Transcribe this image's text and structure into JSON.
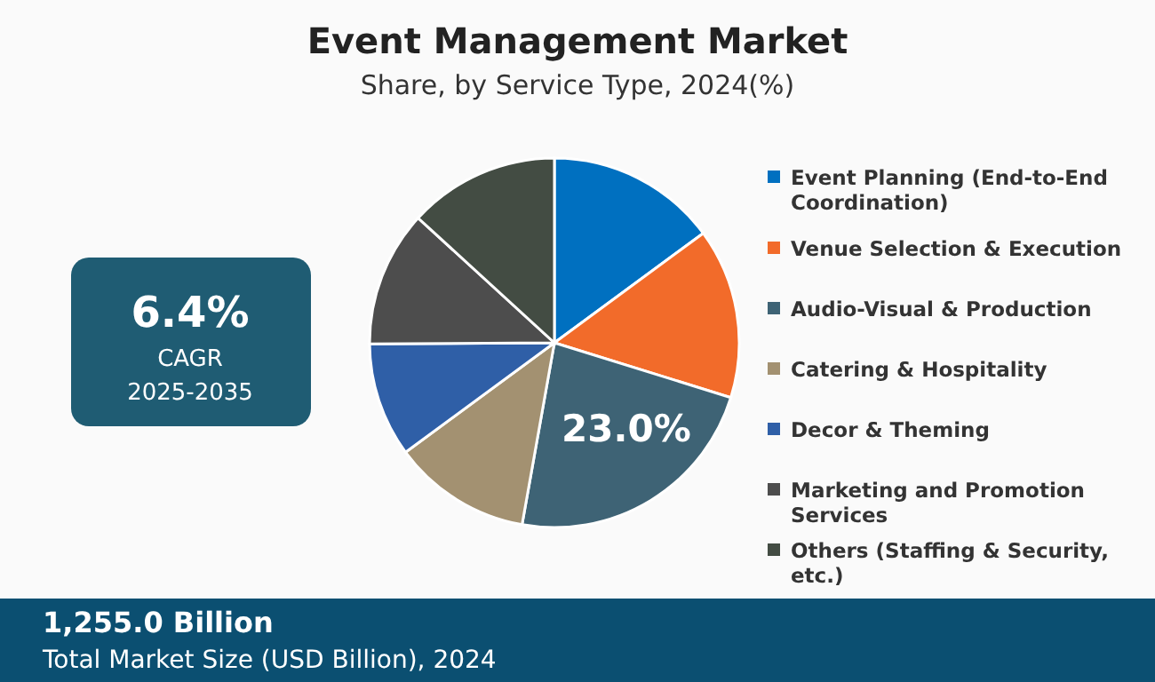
{
  "chart_data": {
    "type": "pie",
    "title": "Event Management Market",
    "subtitle": "Share, by Service Type, 2024(%)",
    "categories": [
      "Event Planning (End-to-End Coordination)",
      "Venue Selection & Execution",
      "Audio-Visual & Production",
      "Catering & Hospitality",
      "Decor & Theming",
      "Marketing and Promotion Services",
      "Others (Staffing & Security, etc.)"
    ],
    "values": [
      14.9,
      14.9,
      23.0,
      12.1,
      10.0,
      11.9,
      13.2
    ],
    "colors": [
      "#0070c0",
      "#f26b2a",
      "#3e6375",
      "#a39171",
      "#2f5fa7",
      "#4d4d4d",
      "#434c43"
    ],
    "value_labels": [
      null,
      null,
      "23.0%",
      null,
      null,
      null,
      null
    ],
    "legend": "right",
    "annotations": [
      "6.4%",
      "CAGR",
      "2025-2035",
      "1,255.0 Billion",
      "Total Market Size (USD Billion), 2024"
    ]
  }
}
